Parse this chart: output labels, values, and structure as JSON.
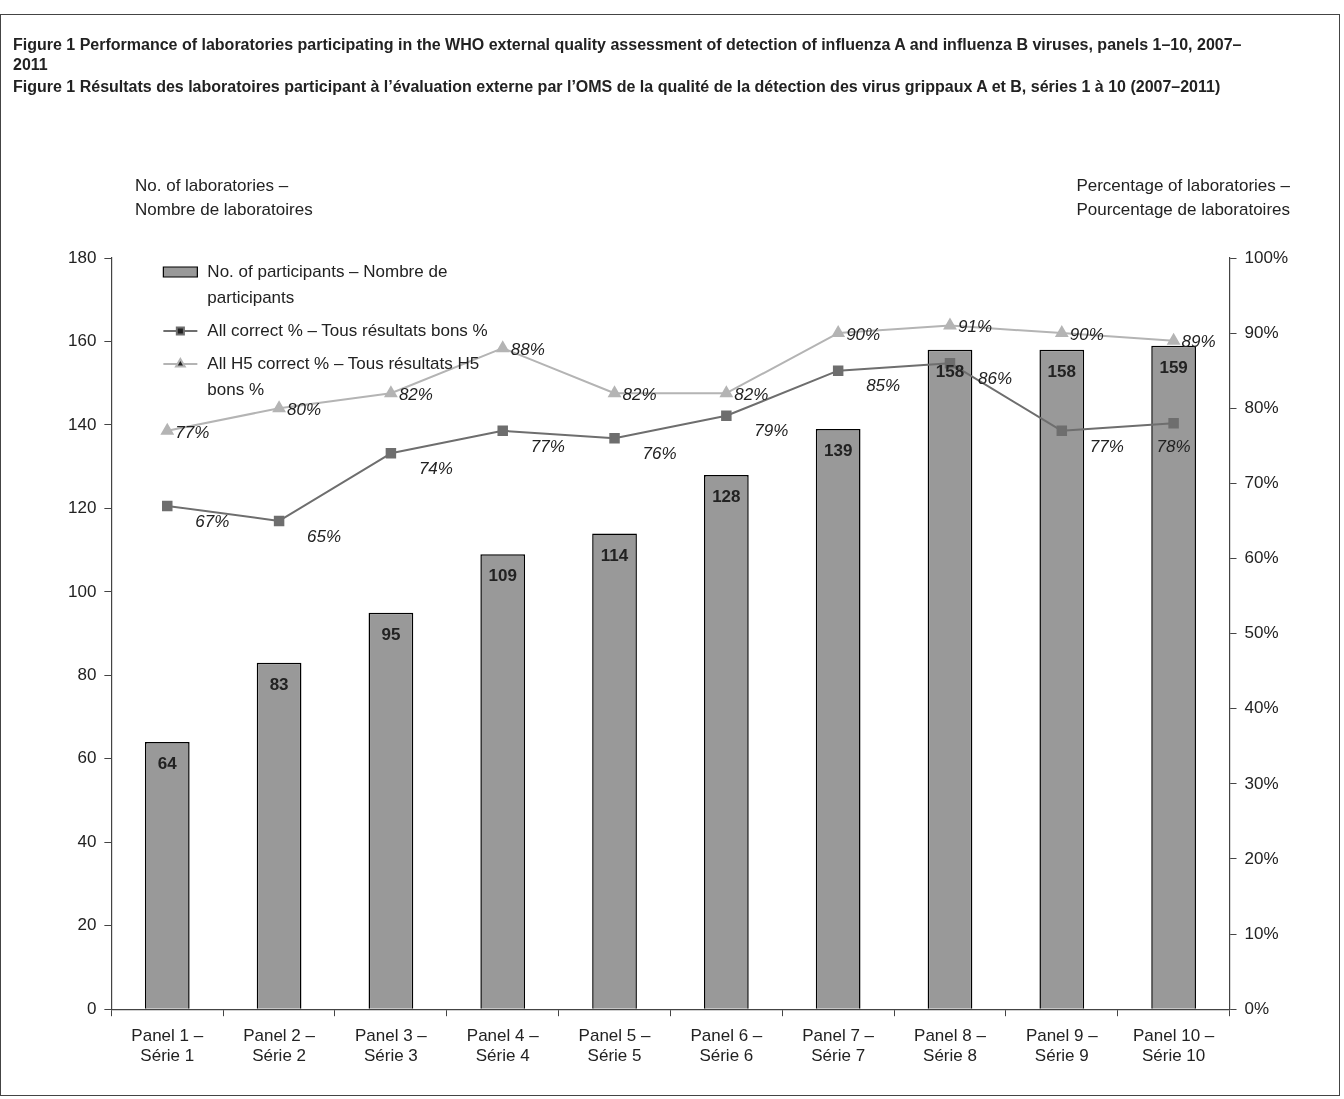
{
  "chart_data": {
    "type": "bar",
    "title": "Figure 1 Performance of laboratories participating in the WHO external quality assessment of detection of influenza A and influenza B viruses, panels 1–10, 2007–2011",
    "subtitle": "Figure 1 Résultats des laboratoires participant à l’évaluation externe par l’OMS de la qualité de la détection des virus grippaux A et B, séries 1 à 10 (2007–2011)",
    "ylabel": "No. of laboratories – Nombre de laboratoires",
    "y2label": "Percentage of laboratories – Pourcentage de laboratoires",
    "categories": [
      "Panel 1 – Série 1",
      "Panel 2 – Série 2",
      "Panel 3 – Série 3",
      "Panel 4 – Série 4",
      "Panel 5 – Série 5",
      "Panel 6 – Série 6",
      "Panel 7 – Série 7",
      "Panel 8 – Série 8",
      "Panel 9 – Série 9",
      "Panel 10 – Série 10"
    ],
    "series": [
      {
        "name": "No. of participants – Nombre de participants",
        "color": "#999999",
        "values": [
          64,
          83,
          95,
          109,
          114,
          128,
          139,
          158,
          158,
          159
        ],
        "data_labels": true
      },
      {
        "name": "All correct % – Tous résultats bons %",
        "type": "line",
        "axis": "y2",
        "marker": "square",
        "color": "#6e6e6e",
        "values": [
          67,
          65,
          74,
          77,
          76,
          79,
          85,
          86,
          77,
          78
        ],
        "value_labels": [
          "67%",
          "65%",
          "74%",
          "77%",
          "76%",
          "79%",
          "85%",
          "86%",
          "77%",
          "78%"
        ]
      },
      {
        "name": "All H5 correct % – Tous résultats H5 bons %",
        "type": "line",
        "axis": "y2",
        "marker": "triangle",
        "color": "#b4b4b4",
        "values": [
          77,
          80,
          82,
          88,
          82,
          82,
          90,
          91,
          90,
          89
        ],
        "value_labels": [
          "77%",
          "80%",
          "82%",
          "88%",
          "82%",
          "82%",
          "90%",
          "91%",
          "90%",
          "89%"
        ]
      }
    ],
    "ylim": [
      0,
      180
    ],
    "yticks": [
      0,
      20,
      40,
      60,
      80,
      100,
      120,
      140,
      160,
      180
    ],
    "y2lim": [
      0,
      100
    ],
    "y2ticks": [
      {
        "value": 0,
        "label": "0%"
      },
      {
        "value": 10,
        "label": "10%"
      },
      {
        "value": 20,
        "label": "20%"
      },
      {
        "value": 30,
        "label": "30%"
      },
      {
        "value": 40,
        "label": "40%"
      },
      {
        "value": 50,
        "label": "50%"
      },
      {
        "value": 60,
        "label": "60%"
      },
      {
        "value": 70,
        "label": "70%"
      },
      {
        "value": 80,
        "label": "80%"
      },
      {
        "value": 90,
        "label": "90%"
      },
      {
        "value": 100,
        "label": "100%"
      }
    ],
    "grid": false,
    "legend": "top left"
  }
}
